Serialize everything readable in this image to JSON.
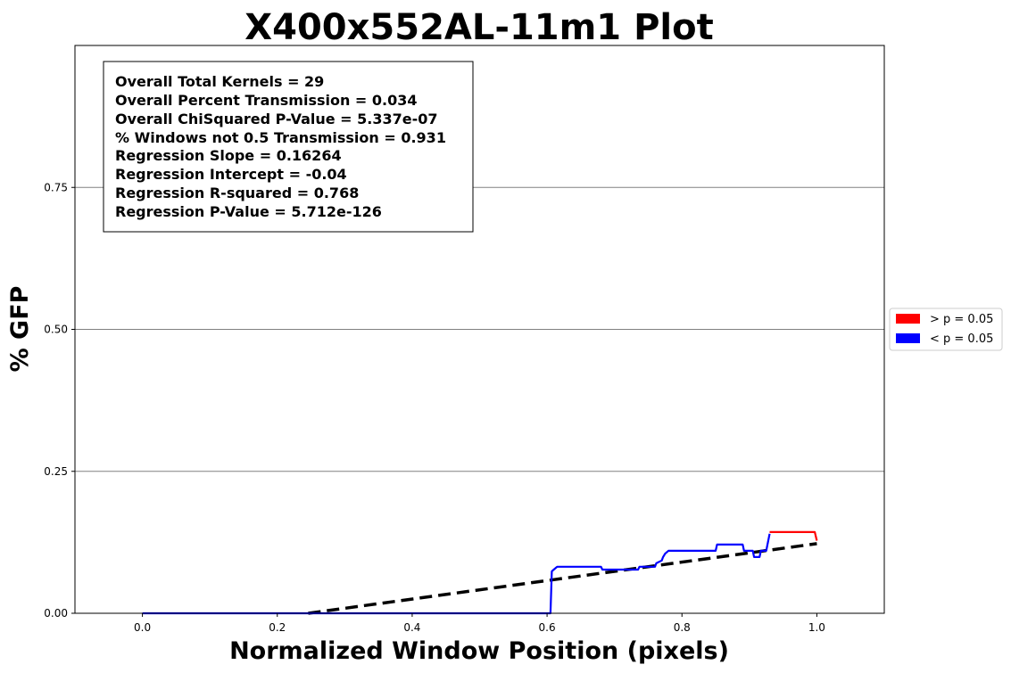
{
  "chart_data": {
    "type": "line",
    "title": "X400x552AL-11m1 Plot",
    "xlabel": "Normalized Window Position (pixels)",
    "ylabel": "% GFP",
    "xlim": [
      -0.1,
      1.1
    ],
    "ylim": [
      0,
      1.0
    ],
    "x_ticks": [
      "0.0",
      "0.2",
      "0.4",
      "0.6",
      "0.8",
      "1.0"
    ],
    "y_ticks": [
      "0.00",
      "0.25",
      "0.50",
      "0.75"
    ],
    "y_grid": [
      0.25,
      0.5,
      0.75
    ],
    "grid": true,
    "legend_position": "outside-right",
    "legend": [
      {
        "label": "> p = 0.05",
        "color": "#ff0000"
      },
      {
        "label": "< p = 0.05",
        "color": "#0000ff"
      }
    ],
    "stats": [
      "Overall Total Kernels = 29",
      "Overall Percent Transmission = 0.034",
      "Overall ChiSquared P-Value = 5.337e-07",
      "% Windows not 0.5 Transmission = 0.931",
      "Regression Slope = 0.16264",
      "Regression Intercept = -0.04",
      "Regression R-squared = 0.768",
      "Regression P-Value = 5.712e-126"
    ],
    "series": [
      {
        "color": "#0000ff",
        "points": [
          [
            0.0,
            0.0
          ],
          [
            0.605,
            0.0
          ],
          [
            0.607,
            0.074
          ],
          [
            0.61,
            0.077
          ],
          [
            0.615,
            0.082
          ],
          [
            0.68,
            0.082
          ],
          [
            0.682,
            0.077
          ],
          [
            0.735,
            0.077
          ],
          [
            0.737,
            0.082
          ],
          [
            0.76,
            0.082
          ],
          [
            0.762,
            0.088
          ],
          [
            0.77,
            0.093
          ],
          [
            0.772,
            0.099
          ],
          [
            0.775,
            0.105
          ],
          [
            0.78,
            0.11
          ],
          [
            0.85,
            0.11
          ],
          [
            0.852,
            0.121
          ],
          [
            0.89,
            0.121
          ],
          [
            0.892,
            0.11
          ],
          [
            0.905,
            0.11
          ],
          [
            0.907,
            0.099
          ],
          [
            0.915,
            0.099
          ],
          [
            0.917,
            0.11
          ],
          [
            0.925,
            0.11
          ],
          [
            0.93,
            0.14
          ]
        ]
      },
      {
        "color": "#ff0000",
        "points": [
          [
            0.93,
            0.143
          ],
          [
            0.997,
            0.143
          ],
          [
            1.0,
            0.128
          ]
        ]
      }
    ],
    "regression": {
      "slope": 0.16264,
      "intercept": -0.04,
      "x_range": [
        0.0,
        1.0
      ],
      "color": "#000000",
      "style": "dashed"
    }
  }
}
